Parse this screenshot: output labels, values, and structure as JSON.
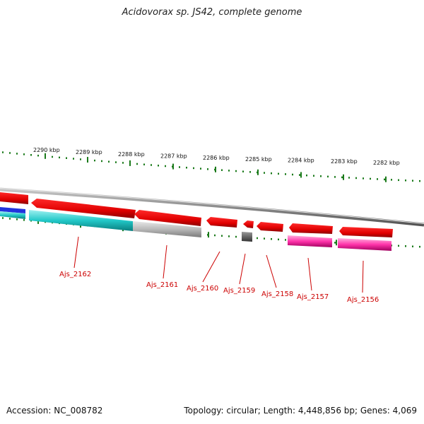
{
  "title": "Acidovorax sp. JS42, complete genome",
  "ruler": {
    "ticks": [
      "2290 kbp",
      "2289 kbp",
      "2288 kbp",
      "2287 kbp",
      "2286 kbp",
      "2285 kbp",
      "2284 kbp",
      "2283 kbp",
      "2282 kbp"
    ],
    "color": "#1a7a1a"
  },
  "genes": [
    {
      "id": "Ajs_2162",
      "color": "#e00000"
    },
    {
      "id": "Ajs_2161",
      "color": "#e00000"
    },
    {
      "id": "Ajs_2160",
      "color": "#e00000"
    },
    {
      "id": "Ajs_2159",
      "color": "#e00000"
    },
    {
      "id": "Ajs_2158",
      "color": "#e00000"
    },
    {
      "id": "Ajs_2157",
      "color": "#e00000"
    },
    {
      "id": "Ajs_2156",
      "color": "#e00000"
    }
  ],
  "feature_colors": {
    "cds": "#e00000",
    "cyan": "#1ec8c8",
    "grey": "#b4b4b4",
    "magenta": "#ff33aa",
    "dark": "#555555",
    "blue": "#2233dd"
  },
  "label_color": "#cc0000",
  "footer": {
    "accession": "Accession: NC_008782",
    "topology": "Topology: circular; Length: 4,448,856 bp; Genes: 4,069"
  }
}
